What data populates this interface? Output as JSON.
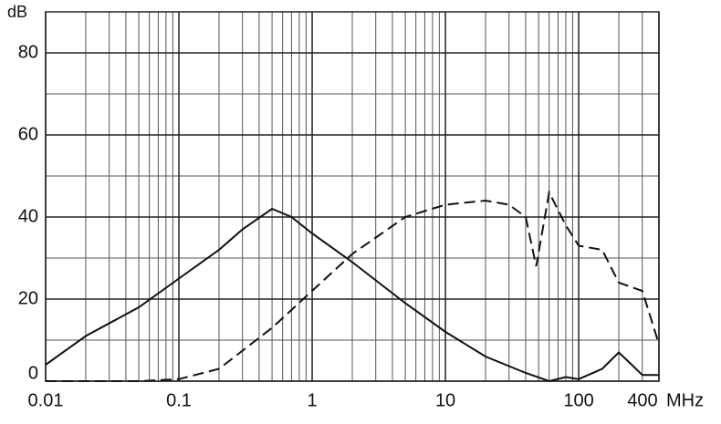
{
  "chart_data": {
    "type": "line",
    "y_label": "dB",
    "x_unit": "MHz",
    "log_x": true,
    "xlim": [
      0.01,
      400
    ],
    "xticks": [
      0.01,
      0.1,
      1,
      10,
      100,
      400
    ],
    "xminor": [
      0.02,
      0.03,
      0.04,
      0.05,
      0.06,
      0.07,
      0.08,
      0.09,
      0.2,
      0.3,
      0.4,
      0.5,
      0.6,
      0.7,
      0.8,
      0.9,
      2,
      3,
      4,
      5,
      6,
      7,
      8,
      9,
      20,
      30,
      40,
      50,
      60,
      70,
      80,
      90,
      200,
      300
    ],
    "ylim": [
      0,
      90
    ],
    "yticks": [
      0,
      20,
      40,
      60,
      80
    ],
    "yminor": [
      10,
      30,
      50,
      70,
      90
    ],
    "grid": true,
    "series": [
      {
        "color": "#111111",
        "dash": false,
        "x": [
          0.01,
          0.02,
          0.05,
          0.1,
          0.2,
          0.3,
          0.5,
          0.7,
          1,
          2,
          5,
          10,
          20,
          40,
          60,
          80,
          100,
          150,
          200,
          250,
          300,
          400
        ],
        "values": [
          4,
          11,
          18,
          25,
          32,
          37,
          42,
          40,
          36,
          29,
          19,
          12,
          6,
          2,
          0,
          1,
          0.5,
          3,
          7,
          4,
          1.5,
          1.5
        ]
      },
      {
        "color": "#111111",
        "dash": true,
        "x": [
          0.01,
          0.05,
          0.1,
          0.2,
          0.5,
          1,
          2,
          5,
          10,
          20,
          30,
          40,
          48,
          60,
          80,
          100,
          150,
          200,
          300,
          400
        ],
        "values": [
          0,
          0,
          0.5,
          3,
          13,
          22,
          31,
          40,
          43,
          44,
          43,
          40,
          28,
          46,
          38,
          33,
          32,
          24,
          22,
          9
        ]
      }
    ]
  }
}
